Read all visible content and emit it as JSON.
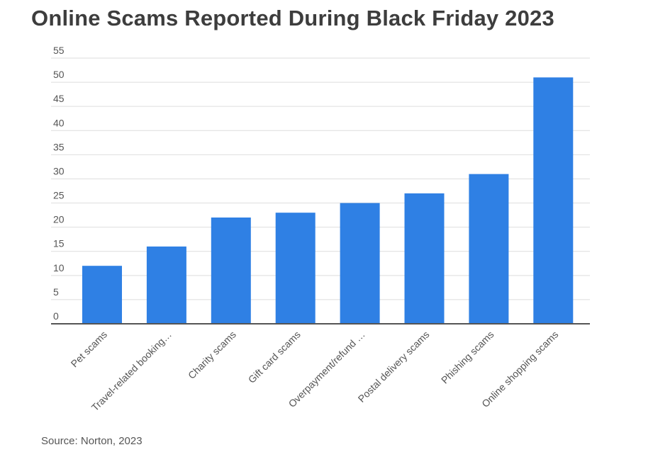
{
  "title": "Online Scams Reported During Black Friday 2023",
  "source": "Source: Norton, 2023",
  "colors": {
    "bar": "#2f80e4",
    "grid": "#dedede",
    "axis": "#555555",
    "text": "#555555"
  },
  "chart_data": {
    "type": "bar",
    "title": "Online Scams Reported During Black Friday 2023",
    "xlabel": "",
    "ylabel": "",
    "ylim": [
      0,
      55
    ],
    "yticks": [
      0,
      5,
      10,
      15,
      20,
      25,
      30,
      35,
      40,
      45,
      50,
      55
    ],
    "grid": true,
    "legend": "none",
    "categories": [
      "Pet scams",
      "Travel-related booking…",
      "Charity scams",
      "Gift card scams",
      "Overpayment/refund …",
      "Postal delivery scams",
      "Phishing scams",
      "Online shopping scams"
    ],
    "values": [
      12,
      16,
      22,
      23,
      25,
      27,
      31,
      51
    ]
  }
}
